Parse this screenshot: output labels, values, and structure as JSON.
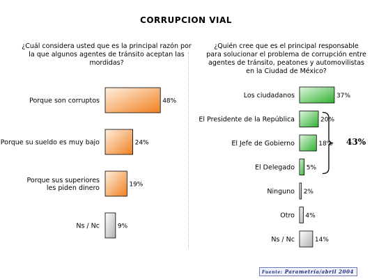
{
  "title": "CORRUPCION VIAL",
  "source_label": "Fuente:",
  "source_text": "Parametría/abril 2004",
  "group_bracket_value": "43%",
  "colors": {
    "orange_light": "#fff0e0",
    "orange_dark": "#f08020",
    "green_light": "#e0f7e0",
    "green_dark": "#30b030",
    "gray_light": "#ffffff",
    "gray_dark": "#b0b0b0",
    "source_border": "#6b7bb5"
  },
  "chart_data": [
    {
      "type": "bar",
      "orientation": "horizontal",
      "title": "¿Cuál considera usted que es la principal razón por la que algunos agentes de tránsito aceptan las mordidas?",
      "categories": [
        "Porque son corruptos",
        "Porque su sueldo es muy bajo",
        "Porque sus superiores les piden dinero",
        "Ns / Nc"
      ],
      "category_lines": [
        [
          "Porque son corruptos"
        ],
        [
          "Porque su sueldo es muy bajo"
        ],
        [
          "Porque sus superiores",
          "les piden dinero"
        ],
        [
          "Ns / Nc"
        ]
      ],
      "values": [
        48,
        24,
        19,
        9
      ],
      "value_labels": [
        "48%",
        "24%",
        "19%",
        "9%"
      ],
      "bar_colors": [
        "orange",
        "orange",
        "orange",
        "gray"
      ],
      "unit": "%"
    },
    {
      "type": "bar",
      "orientation": "horizontal",
      "title": "¿Quién cree que es el principal responsable para solucionar el problema de corrupción entre agentes de tránsito, peatones y automovilistas en la Ciudad de México?",
      "categories": [
        "Los ciudadanos",
        "El Presidente de la República",
        "El Jefe de Gobierno",
        "El Delegado",
        "Ninguno",
        "Otro",
        "Ns / Nc"
      ],
      "values": [
        37,
        20,
        18,
        5,
        2,
        4,
        14
      ],
      "value_labels": [
        "37%",
        "20%",
        "18%",
        "5%",
        "2%",
        "4%",
        "14%"
      ],
      "bar_colors": [
        "green",
        "green",
        "green",
        "green",
        "gray",
        "gray",
        "gray"
      ],
      "unit": "%",
      "bracket": {
        "categories": [
          "El Presidente de la República",
          "El Jefe de Gobierno",
          "El Delegado"
        ],
        "value": 43
      }
    }
  ]
}
